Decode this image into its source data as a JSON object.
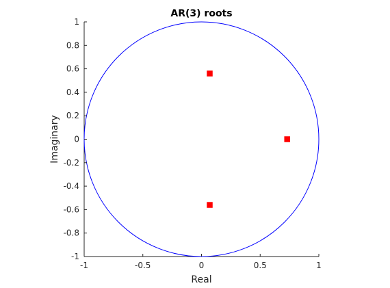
{
  "chart_data": {
    "type": "scatter",
    "title": "AR(3) roots",
    "xlabel": "Real",
    "ylabel": "Imaginary",
    "xlim": [
      -1,
      1
    ],
    "ylim": [
      -1,
      1
    ],
    "xticks": [
      -1,
      -0.5,
      0,
      0.5,
      1
    ],
    "xtick_labels": [
      "-1",
      "-0.5",
      "0",
      "0.5",
      "1"
    ],
    "yticks": [
      -1,
      -0.8,
      -0.6,
      -0.4,
      -0.2,
      0,
      0.2,
      0.4,
      0.6,
      0.8,
      1
    ],
    "ytick_labels": [
      "-1",
      "-0.8",
      "-0.6",
      "-0.4",
      "-0.2",
      "0",
      "0.2",
      "0.4",
      "0.6",
      "0.8",
      "1"
    ],
    "grid": false,
    "unit_circle": {
      "radius": 1,
      "color": "#0000ff"
    },
    "series": [
      {
        "color": "#ff0000",
        "marker": "square",
        "points": [
          {
            "x": 0.07,
            "y": 0.56
          },
          {
            "x": 0.07,
            "y": -0.56
          },
          {
            "x": 0.73,
            "y": 0
          }
        ]
      }
    ]
  }
}
